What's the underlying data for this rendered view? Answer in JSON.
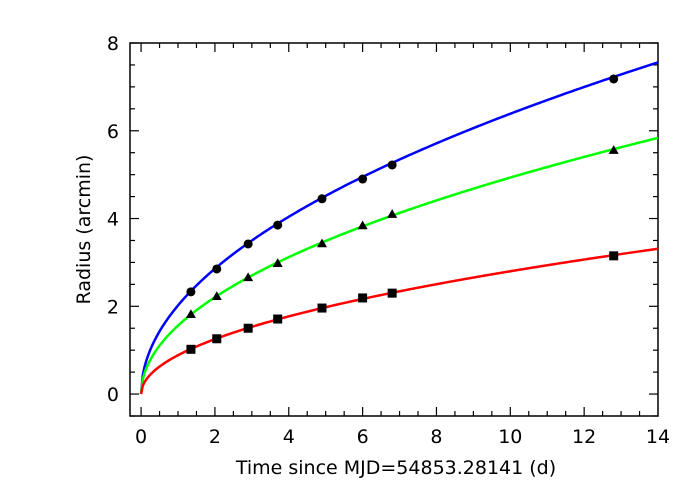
{
  "chart_data": {
    "type": "line",
    "title": "",
    "xlabel": "Time since MJD=54853.28141 (d)",
    "ylabel": "Radius (arcmin)",
    "xlim": [
      -0.3,
      14
    ],
    "ylim": [
      -0.5,
      8
    ],
    "x_ticks": [
      0,
      2,
      4,
      6,
      8,
      10,
      12,
      14
    ],
    "x_tick_labels": [
      "0",
      "2",
      "4",
      "6",
      "8",
      "10",
      "12",
      "14"
    ],
    "y_ticks": [
      0,
      2,
      4,
      6,
      8
    ],
    "y_tick_labels": [
      "0",
      "2",
      "4",
      "6",
      "8"
    ],
    "x_minor_step": 0.5,
    "y_minor_step": 0.5,
    "grid": false,
    "legend": "none",
    "series": [
      {
        "color": "#0000ff",
        "marker": "circle",
        "points": {
          "x": [
            1.35,
            2.05,
            2.9,
            3.7,
            4.9,
            6.0,
            6.8,
            12.8
          ],
          "y": [
            2.33,
            2.85,
            3.42,
            3.85,
            4.45,
            4.9,
            5.22,
            7.18
          ]
        },
        "fit": {
          "a": 2.02,
          "p": 0.5
        }
      },
      {
        "color": "#00ff00",
        "marker": "triangle",
        "points": {
          "x": [
            1.35,
            2.05,
            2.9,
            3.7,
            4.9,
            6.0,
            6.8,
            12.8
          ],
          "y": [
            1.82,
            2.23,
            2.66,
            2.98,
            3.43,
            3.84,
            4.1,
            5.56
          ]
        },
        "fit": {
          "a": 1.56,
          "p": 0.5
        }
      },
      {
        "color": "#ff0000",
        "marker": "square",
        "points": {
          "x": [
            1.35,
            2.05,
            2.9,
            3.7,
            4.9,
            6.0,
            6.8,
            12.8
          ],
          "y": [
            1.02,
            1.26,
            1.5,
            1.71,
            1.96,
            2.19,
            2.3,
            3.15
          ]
        },
        "fit": {
          "a": 0.885,
          "p": 0.5
        }
      }
    ]
  }
}
